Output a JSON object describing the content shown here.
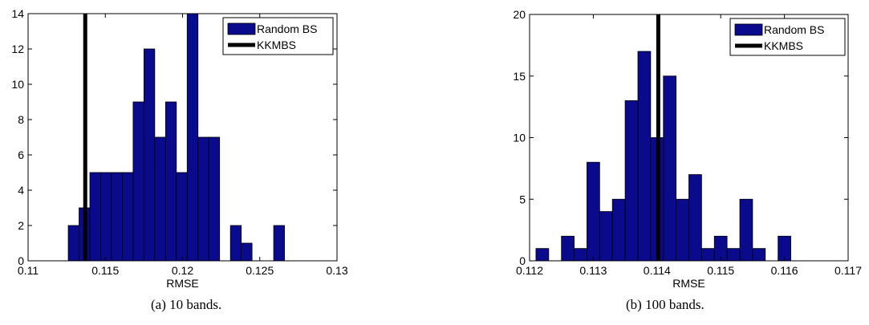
{
  "chart_data": [
    {
      "type": "bar",
      "caption": "(a) 10 bands.",
      "xlabel": "RMSE",
      "ylabel": "",
      "xlim": [
        0.11,
        0.13
      ],
      "ylim": [
        0,
        14
      ],
      "xticks": [
        "0.11",
        "0.115",
        "0.12",
        "0.125",
        "0.13"
      ],
      "xtick_values": [
        0.11,
        0.115,
        0.12,
        0.125,
        0.13
      ],
      "yticks": [
        "0",
        "2",
        "4",
        "6",
        "8",
        "10",
        "12",
        "14"
      ],
      "ytick_values": [
        0,
        2,
        4,
        6,
        8,
        10,
        12,
        14
      ],
      "bin_width": 0.0007,
      "bin_centers": [
        0.11295,
        0.11365,
        0.11435,
        0.11505,
        0.11575,
        0.11645,
        0.11715,
        0.11785,
        0.11855,
        0.11925,
        0.11995,
        0.12065,
        0.12135,
        0.12205,
        0.12275,
        0.12345,
        0.12415,
        0.12485,
        0.12555,
        0.12625
      ],
      "values": [
        2,
        3,
        5,
        5,
        5,
        5,
        9,
        12,
        7,
        9,
        5,
        14,
        7,
        7,
        0,
        2,
        1,
        0,
        0,
        2
      ],
      "vline": 0.1137,
      "series": [
        {
          "name": "Random BS",
          "color": "#0a0a8c"
        },
        {
          "name": "KKMBS",
          "color": "#000000"
        }
      ],
      "legend": "top-right",
      "grid": false
    },
    {
      "type": "bar",
      "caption": "(b) 100 bands.",
      "xlabel": "RMSE",
      "ylabel": "",
      "xlim": [
        0.112,
        0.117
      ],
      "ylim": [
        0,
        20
      ],
      "xticks": [
        "0.112",
        "0.113",
        "0.114",
        "0.115",
        "0.116",
        "0.117"
      ],
      "xtick_values": [
        0.112,
        0.113,
        0.114,
        0.115,
        0.116,
        0.117
      ],
      "yticks": [
        "0",
        "5",
        "10",
        "15",
        "20"
      ],
      "ytick_values": [
        0,
        5,
        10,
        15,
        20
      ],
      "bin_width": 0.0002,
      "bin_centers": [
        0.1122,
        0.1124,
        0.1126,
        0.1128,
        0.113,
        0.1132,
        0.1134,
        0.1136,
        0.1138,
        0.114,
        0.1142,
        0.1144,
        0.1146,
        0.1148,
        0.115,
        0.1152,
        0.1154,
        0.1156,
        0.1158,
        0.116
      ],
      "values": [
        1,
        0,
        2,
        1,
        8,
        4,
        5,
        13,
        17,
        10,
        15,
        5,
        7,
        1,
        2,
        1,
        5,
        1,
        0,
        2
      ],
      "vline": 0.11402,
      "series": [
        {
          "name": "Random BS",
          "color": "#0a0a8c"
        },
        {
          "name": "KKMBS",
          "color": "#000000"
        }
      ],
      "legend": "top-right",
      "grid": false
    }
  ]
}
